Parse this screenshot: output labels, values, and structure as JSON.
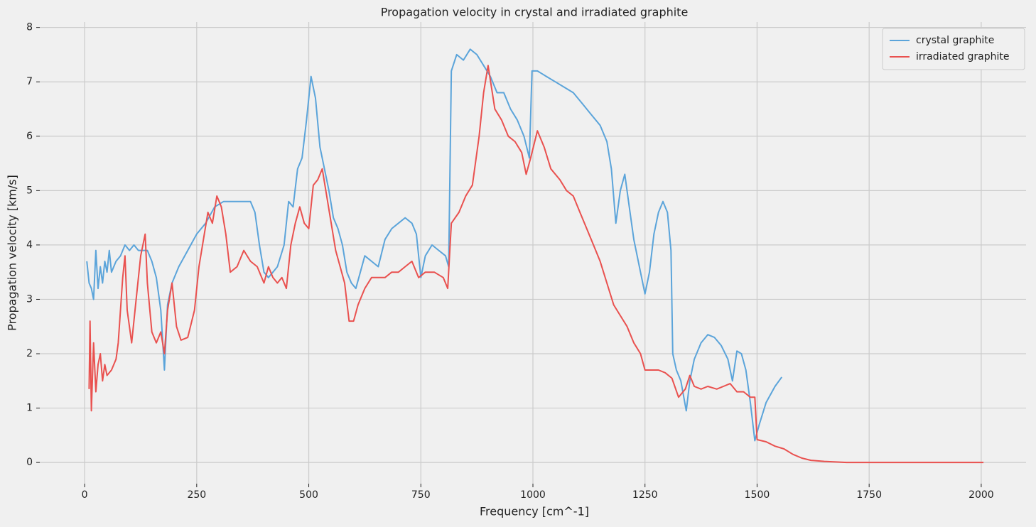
{
  "chart_data": {
    "type": "line",
    "title": "Propagation velocity in crystal and irradiated graphite",
    "x_label": "Frequency [cm^-1]",
    "y_label": "Propagation velocity [km/s]",
    "xlim": [
      -100,
      2100
    ],
    "ylim": [
      -0.39,
      8.1
    ],
    "xticks": [
      0,
      250,
      500,
      750,
      1000,
      1250,
      1500,
      1750,
      2000
    ],
    "yticks": [
      0,
      1,
      2,
      3,
      4,
      5,
      6,
      7,
      8
    ],
    "grid": true,
    "legend": "upper right",
    "series": [
      {
        "name": "crystal graphite",
        "color": "#5ba4da",
        "x": [
          5,
          10,
          15,
          20,
          25,
          30,
          35,
          40,
          45,
          50,
          55,
          60,
          70,
          80,
          90,
          100,
          110,
          120,
          130,
          140,
          150,
          160,
          170,
          178,
          185,
          195,
          210,
          230,
          250,
          270,
          290,
          310,
          330,
          350,
          370,
          380,
          390,
          400,
          410,
          420,
          430,
          445,
          455,
          465,
          475,
          485,
          495,
          505,
          515,
          525,
          535,
          545,
          555,
          565,
          575,
          585,
          595,
          605,
          615,
          625,
          640,
          655,
          670,
          685,
          700,
          715,
          730,
          740,
          750,
          760,
          775,
          790,
          805,
          812,
          818,
          830,
          845,
          860,
          875,
          890,
          905,
          920,
          935,
          950,
          965,
          980,
          992,
          998,
          1010,
          1030,
          1050,
          1070,
          1090,
          1110,
          1130,
          1150,
          1165,
          1175,
          1185,
          1195,
          1205,
          1215,
          1225,
          1240,
          1250,
          1260,
          1270,
          1280,
          1290,
          1300,
          1308,
          1312,
          1320,
          1330,
          1342,
          1350,
          1360,
          1375,
          1390,
          1405,
          1420,
          1435,
          1445,
          1455,
          1465,
          1475,
          1485,
          1495,
          1505,
          1520,
          1540,
          1555
        ],
        "values": [
          3.7,
          3.3,
          3.2,
          3.0,
          3.9,
          3.2,
          3.6,
          3.3,
          3.7,
          3.5,
          3.9,
          3.5,
          3.7,
          3.8,
          4.0,
          3.9,
          4.0,
          3.9,
          3.9,
          3.9,
          3.7,
          3.4,
          2.8,
          1.7,
          2.9,
          3.3,
          3.6,
          3.9,
          4.2,
          4.4,
          4.7,
          4.8,
          4.8,
          4.8,
          4.8,
          4.6,
          4.0,
          3.5,
          3.4,
          3.5,
          3.6,
          4.0,
          4.8,
          4.7,
          5.4,
          5.6,
          6.3,
          7.1,
          6.7,
          5.8,
          5.4,
          5.0,
          4.5,
          4.3,
          4.0,
          3.5,
          3.3,
          3.2,
          3.5,
          3.8,
          3.7,
          3.6,
          4.1,
          4.3,
          4.4,
          4.5,
          4.4,
          4.2,
          3.4,
          3.8,
          4.0,
          3.9,
          3.8,
          3.6,
          7.2,
          7.5,
          7.4,
          7.6,
          7.5,
          7.3,
          7.1,
          6.8,
          6.8,
          6.5,
          6.3,
          6.0,
          5.6,
          7.2,
          7.2,
          7.1,
          7.0,
          6.9,
          6.8,
          6.6,
          6.4,
          6.2,
          5.9,
          5.4,
          4.4,
          5.0,
          5.3,
          4.7,
          4.1,
          3.5,
          3.1,
          3.5,
          4.2,
          4.6,
          4.8,
          4.6,
          3.9,
          2.0,
          1.7,
          1.5,
          0.95,
          1.5,
          1.9,
          2.2,
          2.35,
          2.3,
          2.15,
          1.9,
          1.5,
          2.05,
          2.0,
          1.7,
          1.1,
          0.4,
          0.7,
          1.1,
          1.4,
          1.57
        ]
      },
      {
        "name": "irradiated graphite",
        "color": "#e9514f",
        "x": [
          10,
          12,
          15,
          20,
          25,
          30,
          35,
          40,
          45,
          50,
          60,
          70,
          75,
          85,
          90,
          95,
          105,
          115,
          125,
          135,
          140,
          150,
          160,
          170,
          178,
          185,
          195,
          205,
          215,
          230,
          245,
          255,
          265,
          275,
          285,
          295,
          305,
          315,
          325,
          340,
          355,
          370,
          385,
          400,
          410,
          420,
          430,
          440,
          450,
          460,
          470,
          480,
          490,
          500,
          510,
          520,
          530,
          540,
          550,
          560,
          570,
          580,
          590,
          600,
          610,
          625,
          640,
          655,
          670,
          685,
          700,
          715,
          730,
          745,
          760,
          780,
          800,
          810,
          818,
          835,
          850,
          865,
          880,
          890,
          900,
          915,
          930,
          945,
          960,
          975,
          985,
          995,
          1010,
          1025,
          1040,
          1060,
          1075,
          1090,
          1105,
          1120,
          1135,
          1150,
          1165,
          1180,
          1195,
          1210,
          1225,
          1240,
          1250,
          1265,
          1280,
          1295,
          1310,
          1325,
          1340,
          1350,
          1360,
          1375,
          1390,
          1410,
          1425,
          1440,
          1455,
          1470,
          1485,
          1495,
          1500,
          1520,
          1540,
          1560,
          1580,
          1600,
          1620,
          1650,
          1700,
          1800,
          1900,
          2005
        ],
        "values": [
          1.35,
          2.6,
          0.95,
          2.2,
          1.3,
          1.8,
          2.0,
          1.5,
          1.8,
          1.6,
          1.7,
          1.9,
          2.2,
          3.4,
          3.8,
          2.8,
          2.2,
          3.0,
          3.8,
          4.2,
          3.3,
          2.4,
          2.2,
          2.4,
          2.0,
          2.8,
          3.3,
          2.5,
          2.25,
          2.3,
          2.8,
          3.6,
          4.1,
          4.6,
          4.4,
          4.9,
          4.7,
          4.2,
          3.5,
          3.6,
          3.9,
          3.7,
          3.6,
          3.3,
          3.6,
          3.4,
          3.3,
          3.4,
          3.2,
          4.0,
          4.4,
          4.7,
          4.4,
          4.3,
          5.1,
          5.2,
          5.4,
          4.9,
          4.4,
          3.9,
          3.6,
          3.3,
          2.6,
          2.6,
          2.9,
          3.2,
          3.4,
          3.4,
          3.4,
          3.5,
          3.5,
          3.6,
          3.7,
          3.4,
          3.5,
          3.5,
          3.4,
          3.2,
          4.4,
          4.6,
          4.9,
          5.1,
          6.0,
          6.8,
          7.3,
          6.5,
          6.3,
          6.0,
          5.9,
          5.7,
          5.3,
          5.6,
          6.1,
          5.8,
          5.4,
          5.2,
          5.0,
          4.9,
          4.6,
          4.3,
          4.0,
          3.7,
          3.3,
          2.9,
          2.7,
          2.5,
          2.2,
          2.0,
          1.7,
          1.7,
          1.7,
          1.65,
          1.55,
          1.2,
          1.35,
          1.6,
          1.4,
          1.35,
          1.4,
          1.35,
          1.4,
          1.45,
          1.3,
          1.3,
          1.2,
          1.2,
          0.42,
          0.38,
          0.3,
          0.25,
          0.15,
          0.08,
          0.04,
          0.02,
          0,
          0,
          0,
          0
        ]
      }
    ]
  }
}
